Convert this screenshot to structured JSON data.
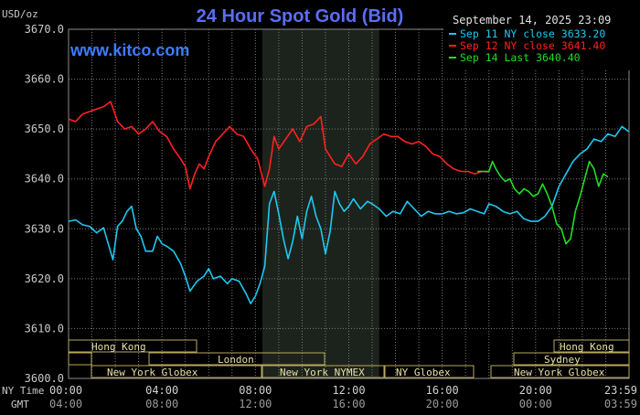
{
  "header": {
    "unit": "USD/oz",
    "title": "24 Hour Spot Gold (Bid)",
    "datetime": "September 14, 2025 23:09",
    "site": "www.kitco.com"
  },
  "colors": {
    "background": "#000000",
    "grid": "#7a7a7a",
    "axis_text": "#c8c8c8",
    "title": "#5a6ef5",
    "site": "#3e7bff",
    "sessions_box": "#b8a860",
    "sessions_text": "#e8e0a0",
    "nymex_shade": "#1c231c"
  },
  "legend": [
    {
      "label": "Sep 11 NY close 3633.20",
      "color": "#1ec8f0"
    },
    {
      "label": "Sep 12 NY close 3641.40",
      "color": "#ff2020"
    },
    {
      "label": "Sep 14 Last 3640.40",
      "color": "#22dd22"
    }
  ],
  "sessions": {
    "row1": [
      {
        "label": "Hong Kong"
      },
      {
        "label": "Hong Kong"
      }
    ],
    "row2": [
      {
        "label": "London"
      },
      {
        "label": "Sydney"
      }
    ],
    "row3": [
      {
        "label": "New York Globex"
      },
      {
        "label": "New York NYMEX"
      },
      {
        "label": "NY Globex"
      },
      {
        "label": "New York Globex"
      }
    ]
  },
  "time_axis": {
    "ny_label": "NY Time",
    "gmt_label": "GMT",
    "ny_ticks": [
      "00:00",
      "04:00",
      "08:00",
      "12:00",
      "16:00",
      "20:00",
      "23:59"
    ],
    "gmt_ticks": [
      "04:00",
      "08:00",
      "12:00",
      "16:00",
      "20:00",
      "00:00",
      "03:59"
    ]
  },
  "chart_data": {
    "type": "line",
    "x_unit": "hours (NY time)",
    "xlim": [
      0,
      24
    ],
    "ylim": [
      3600,
      3670
    ],
    "yticks": [
      3670,
      3660,
      3650,
      3640,
      3630,
      3620,
      3610,
      3600
    ],
    "ytick_labels": [
      "3670.0",
      "3660.0",
      "3650.0",
      "3640.0",
      "3630.0",
      "3620.0",
      "3610.0",
      "3600.0"
    ],
    "grid": true,
    "legend_position": "top-right",
    "shaded_region_hours": [
      8.3,
      13.3
    ],
    "series": [
      {
        "name": "Sep 11 NY close 3633.20",
        "x": [
          0,
          0.3,
          0.6,
          0.9,
          1.2,
          1.5,
          1.7,
          1.9,
          2.1,
          2.3,
          2.5,
          2.7,
          2.9,
          3.1,
          3.3,
          3.6,
          3.8,
          4.0,
          4.2,
          4.5,
          4.8,
          5.0,
          5.2,
          5.5,
          5.8,
          6.0,
          6.2,
          6.5,
          6.8,
          7.0,
          7.3,
          7.6,
          7.8,
          8.0,
          8.2,
          8.4,
          8.6,
          8.8,
          9.0,
          9.2,
          9.4,
          9.6,
          9.8,
          10.0,
          10.2,
          10.4,
          10.6,
          10.8,
          11.0,
          11.2,
          11.4,
          11.6,
          11.8,
          12.0,
          12.2,
          12.5,
          12.8,
          13.0,
          13.3,
          13.6,
          13.9,
          14.2,
          14.5,
          14.8,
          15.1,
          15.4,
          15.7,
          16.0,
          16.3,
          16.6,
          16.9,
          17.2,
          17.5,
          17.8,
          18.0,
          18.3,
          18.6,
          18.9,
          19.2,
          19.5,
          19.8,
          20.1,
          20.4,
          20.7,
          21.0,
          21.3,
          21.6,
          21.9,
          22.2,
          22.5,
          22.8,
          23.1,
          23.4,
          23.7,
          23.98
        ],
        "y": [
          3631.5,
          3631.8,
          3630.8,
          3630.5,
          3629.2,
          3630.2,
          3627.0,
          3623.8,
          3630.5,
          3631.5,
          3633.5,
          3634.5,
          3630.0,
          3628.5,
          3625.5,
          3625.5,
          3628.5,
          3627.0,
          3626.5,
          3625.5,
          3623.0,
          3620.5,
          3617.5,
          3619.5,
          3620.5,
          3622.0,
          3620.0,
          3620.5,
          3619.0,
          3620.0,
          3619.5,
          3617.0,
          3615.0,
          3616.5,
          3619.0,
          3622.5,
          3635.0,
          3637.5,
          3633.0,
          3628.0,
          3624.0,
          3627.5,
          3632.5,
          3628.0,
          3633.5,
          3636.5,
          3632.5,
          3630.0,
          3625.0,
          3629.5,
          3637.5,
          3635.0,
          3633.5,
          3634.5,
          3636.0,
          3634.0,
          3635.5,
          3635.0,
          3634.0,
          3632.5,
          3633.5,
          3633.0,
          3635.5,
          3634.0,
          3632.5,
          3633.5,
          3633.0,
          3633.0,
          3633.5,
          3633.0,
          3633.2,
          3634.0,
          3633.5,
          3633.0,
          3635.0,
          3634.5,
          3633.5,
          3633.0,
          3633.5,
          3632.0,
          3631.5,
          3631.5,
          3632.5,
          3634.5,
          3638.5,
          3641.0,
          3643.5,
          3645.0,
          3646.0,
          3648.0,
          3647.5,
          3649.0,
          3648.5,
          3650.5,
          3649.5
        ]
      },
      {
        "name": "Sep 12 NY close 3641.40",
        "x": [
          0,
          0.3,
          0.6,
          0.9,
          1.2,
          1.5,
          1.8,
          2.1,
          2.4,
          2.7,
          3.0,
          3.3,
          3.6,
          3.9,
          4.2,
          4.5,
          4.8,
          5.0,
          5.2,
          5.4,
          5.6,
          5.8,
          6.0,
          6.3,
          6.6,
          6.9,
          7.2,
          7.5,
          7.8,
          8.1,
          8.4,
          8.6,
          8.8,
          9.0,
          9.3,
          9.6,
          9.9,
          10.2,
          10.5,
          10.8,
          11.0,
          11.2,
          11.4,
          11.7,
          12.0,
          12.3,
          12.6,
          12.9,
          13.2,
          13.5,
          13.8,
          14.1,
          14.4,
          14.7,
          15.0,
          15.3,
          15.6,
          15.9,
          16.2,
          16.5,
          16.8,
          17.1,
          17.4,
          17.7,
          17.98
        ],
        "y": [
          3652.0,
          3651.5,
          3653.0,
          3653.5,
          3654.0,
          3654.5,
          3655.5,
          3651.5,
          3650.0,
          3650.5,
          3649.0,
          3650.0,
          3651.5,
          3649.5,
          3648.5,
          3646.0,
          3644.0,
          3642.5,
          3638.0,
          3641.0,
          3643.0,
          3642.0,
          3644.5,
          3647.5,
          3649.0,
          3650.5,
          3649.0,
          3648.5,
          3646.0,
          3644.0,
          3638.5,
          3642.0,
          3648.5,
          3646.0,
          3648.0,
          3650.0,
          3647.5,
          3650.5,
          3651.0,
          3652.5,
          3646.0,
          3644.5,
          3643.0,
          3642.5,
          3645.0,
          3643.0,
          3644.5,
          3647.0,
          3648.0,
          3649.0,
          3648.5,
          3648.5,
          3647.5,
          3647.0,
          3647.5,
          3646.5,
          3645.0,
          3644.5,
          3643.0,
          3642.0,
          3641.5,
          3641.5,
          3641.0,
          3641.5,
          3641.4
        ]
      },
      {
        "name": "Sep 14 Last 3640.40",
        "x": [
          17.5,
          18.0,
          18.15,
          18.3,
          18.5,
          18.7,
          18.9,
          19.1,
          19.3,
          19.5,
          19.7,
          19.9,
          20.1,
          20.3,
          20.5,
          20.7,
          20.9,
          21.1,
          21.3,
          21.5,
          21.7,
          21.9,
          22.1,
          22.3,
          22.5,
          22.7,
          22.9,
          23.1
        ],
        "y": [
          3641.5,
          3641.5,
          3643.5,
          3642.0,
          3640.5,
          3639.5,
          3640.0,
          3638.0,
          3637.0,
          3638.0,
          3637.5,
          3636.5,
          3637.0,
          3639.0,
          3637.0,
          3634.5,
          3631.0,
          3630.0,
          3627.0,
          3628.0,
          3633.5,
          3636.5,
          3640.0,
          3643.5,
          3642.0,
          3638.5,
          3641.0,
          3640.4
        ]
      }
    ]
  }
}
